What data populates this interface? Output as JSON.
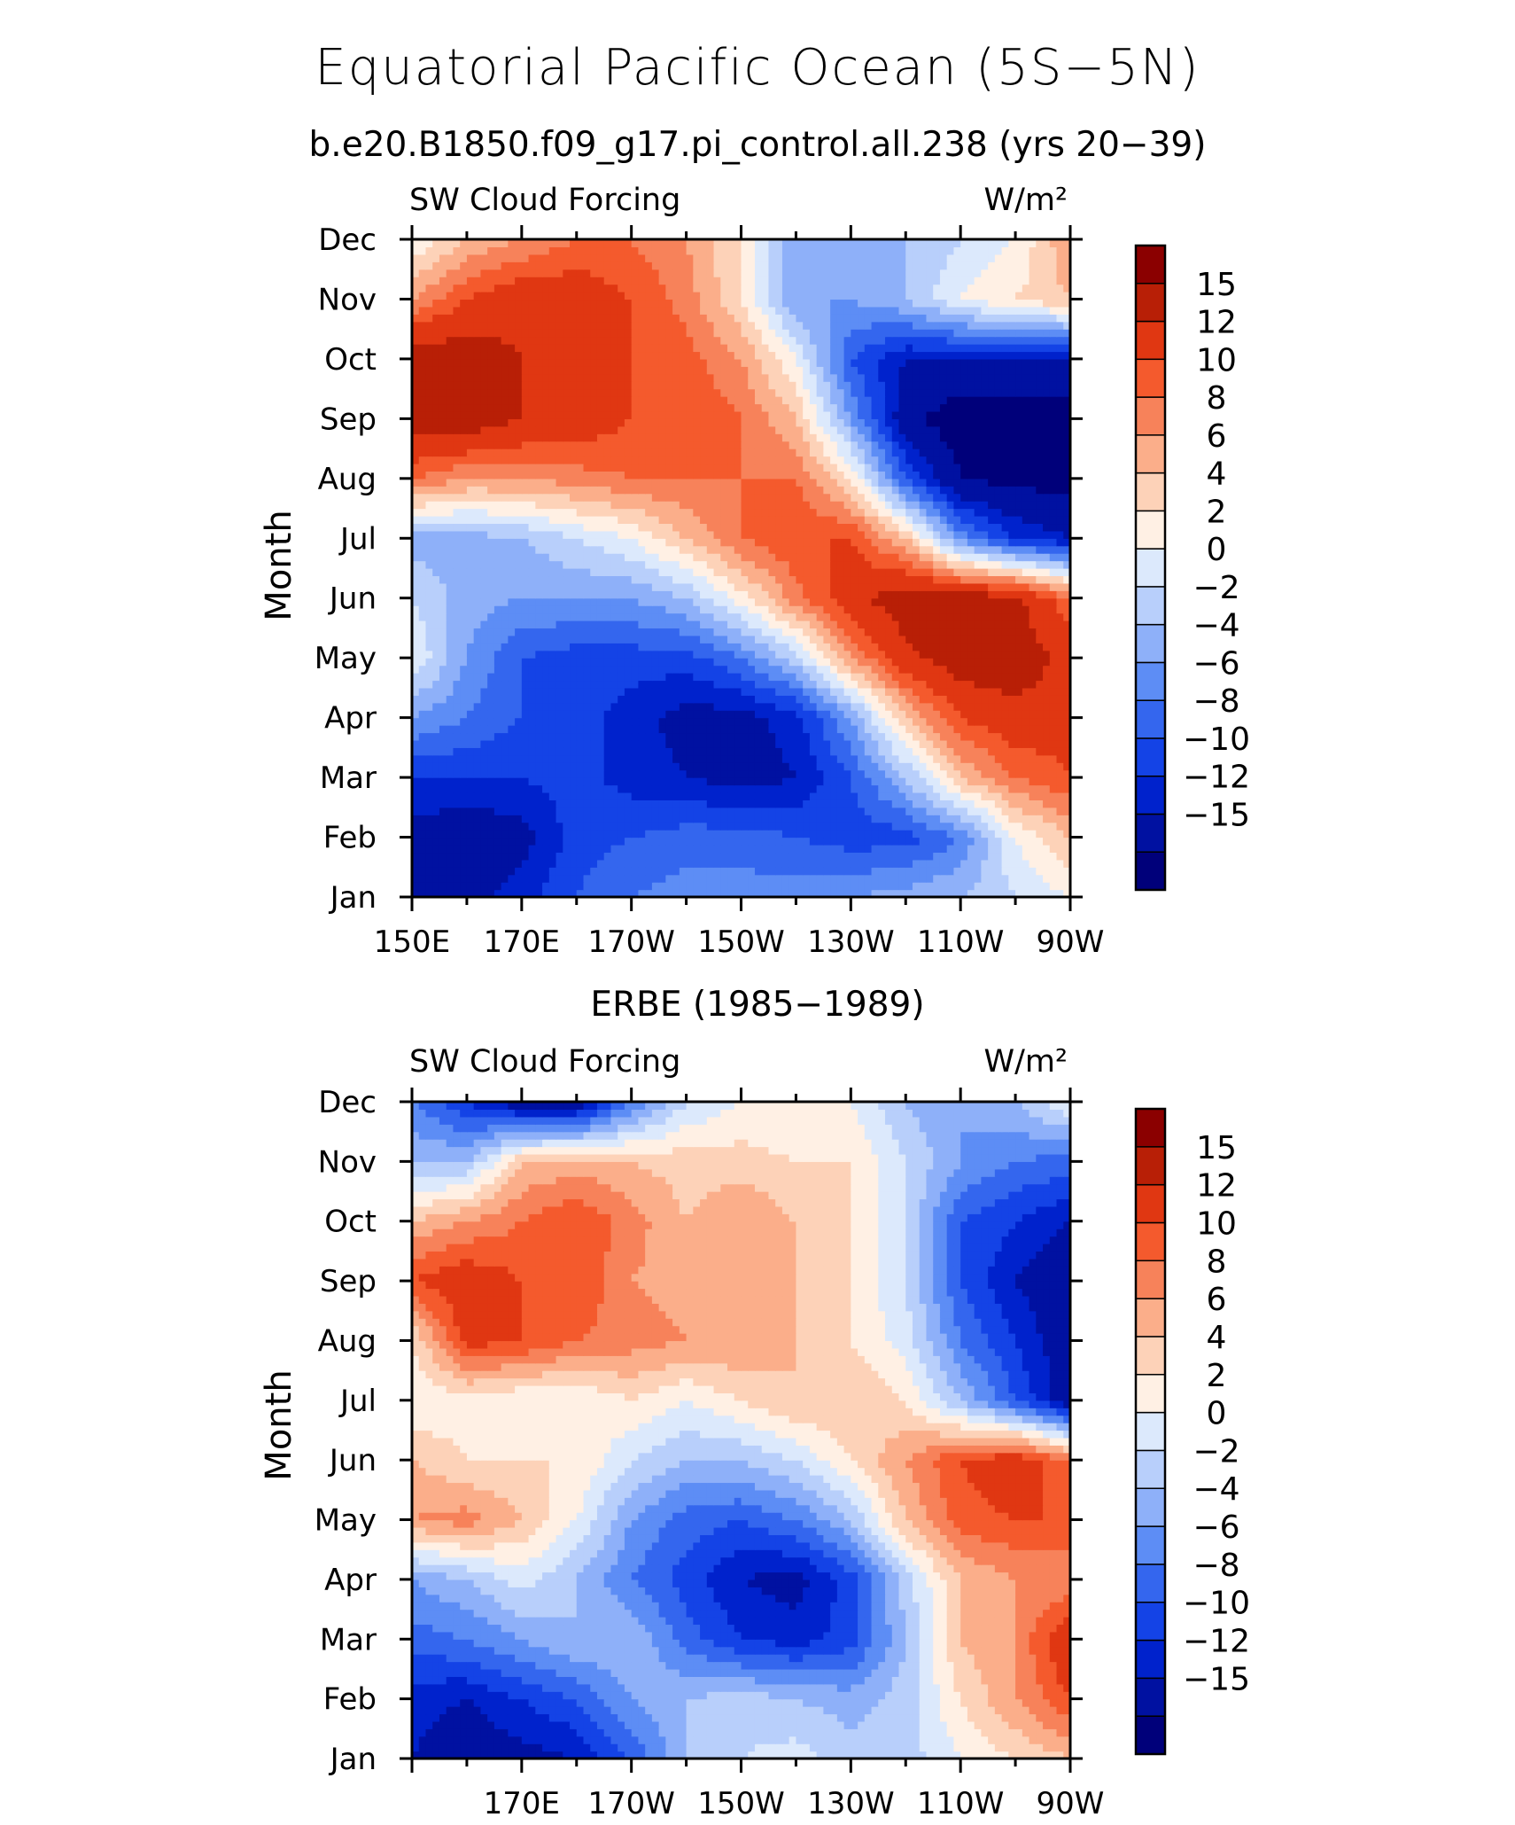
{
  "title": "Equatorial Pacific Ocean (5S−5N)",
  "colors": [
    "#00007a",
    "#0011a1",
    "#0022cc",
    "#1443e6",
    "#3466ee",
    "#5d8df5",
    "#8eb0f9",
    "#b8cffb",
    "#dce9fc",
    "#fff0e4",
    "#fdd2b8",
    "#fbae8a",
    "#f7825a",
    "#f45a2d",
    "#e03712",
    "#b81f06",
    "#8b0000"
  ],
  "colorbar_labels": [
    "15",
    "12",
    "10",
    "8",
    "6",
    "4",
    "2",
    "0",
    "−2",
    "−4",
    "−6",
    "−8",
    "−10",
    "−12",
    "−15"
  ],
  "panels": [
    {
      "subtitle": "b.e20.B1850.f09_g17.pi_control.all.238 (yrs 20−39)",
      "left_label": "SW Cloud Forcing",
      "right_label": "W/m²",
      "ylabel": "Month",
      "y_ticks": [
        "Jan",
        "Feb",
        "Mar",
        "Apr",
        "May",
        "Jun",
        "Jul",
        "Aug",
        "Sep",
        "Oct",
        "Nov",
        "Dec"
      ],
      "x_ticks": [
        "150E",
        "170E",
        "170W",
        "150W",
        "130W",
        "110W",
        "90W"
      ]
    },
    {
      "subtitle": "ERBE (1985−1989)",
      "left_label": "SW Cloud Forcing",
      "right_label": "W/m²",
      "ylabel": "Month",
      "y_ticks": [
        "Jan",
        "Feb",
        "Mar",
        "Apr",
        "May",
        "Jun",
        "Jul",
        "Aug",
        "Sep",
        "Oct",
        "Nov",
        "Dec"
      ],
      "x_ticks": [
        "170E",
        "170W",
        "150W",
        "130W",
        "110W",
        "90W"
      ]
    }
  ],
  "chart_data": [
    {
      "type": "heatmap",
      "title": "b.e20.B1850.f09_g17.pi_control.all.238 (yrs 20−39)",
      "xlabel": "",
      "ylabel": "Month",
      "units": "W/m²",
      "x": [
        150,
        160,
        170,
        180,
        190,
        200,
        210,
        220,
        230,
        240,
        250,
        260,
        270
      ],
      "y": [
        "Jan",
        "Feb",
        "Mar",
        "Apr",
        "May",
        "Jun",
        "Jul",
        "Aug",
        "Sep",
        "Oct",
        "Nov",
        "Dec"
      ],
      "z": [
        [
          -13,
          -13,
          -11,
          -8,
          -6,
          -5,
          -5,
          -5,
          -4,
          -3,
          -2,
          0,
          2
        ],
        [
          -13,
          -14,
          -13,
          -9,
          -8,
          -7,
          -7,
          -8,
          -9,
          -9,
          -6,
          2,
          6
        ],
        [
          -10,
          -10,
          -10,
          -9,
          -11,
          -12,
          -13,
          -12,
          -8,
          -2,
          6,
          10,
          12
        ],
        [
          -4,
          -6,
          -8,
          -9,
          -11,
          -13,
          -13,
          -11,
          -4,
          6,
          12,
          14,
          13
        ],
        [
          2,
          -4,
          -8,
          -9,
          -9,
          -9,
          -6,
          -1,
          8,
          14,
          17,
          17,
          14
        ],
        [
          0,
          -3,
          -4,
          -4,
          -4,
          -2,
          3,
          9,
          14,
          17,
          17,
          16,
          10
        ],
        [
          -3,
          -3,
          -2,
          0,
          2,
          6,
          10,
          12,
          12,
          6,
          -5,
          -10,
          -12
        ],
        [
          10,
          8,
          8,
          9,
          10,
          10,
          10,
          10,
          4,
          -8,
          -15,
          -16,
          -16
        ],
        [
          17,
          17,
          15,
          14,
          12,
          12,
          10,
          6,
          -4,
          -14,
          -17,
          -17,
          -17
        ],
        [
          17,
          17,
          15,
          15,
          12,
          11,
          8,
          2,
          -8,
          -12,
          -12,
          -12,
          -12
        ],
        [
          8,
          12,
          14,
          14,
          12,
          9,
          4,
          -4,
          -4,
          -2,
          2,
          4,
          6
        ],
        [
          2,
          6,
          8,
          10,
          10,
          8,
          4,
          -4,
          -4,
          -2,
          0,
          2,
          8
        ]
      ],
      "levels": [
        -15,
        -12,
        -10,
        -8,
        -6,
        -4,
        -2,
        0,
        2,
        4,
        6,
        8,
        10,
        12,
        15
      ]
    },
    {
      "type": "heatmap",
      "title": "ERBE (1985−1989)",
      "xlabel": "",
      "ylabel": "Month",
      "units": "W/m²",
      "x": [
        150,
        160,
        170,
        180,
        190,
        200,
        210,
        220,
        230,
        240,
        250,
        260,
        270
      ],
      "y": [
        "Jan",
        "Feb",
        "Mar",
        "Apr",
        "May",
        "Jun",
        "Jul",
        "Aug",
        "Sep",
        "Oct",
        "Nov",
        "Dec"
      ],
      "z": [
        [
          -12,
          -14,
          -13,
          -12,
          -8,
          -2,
          0,
          1,
          -1,
          -1,
          2,
          4,
          6
        ],
        [
          -11,
          -12,
          -10,
          -8,
          -4,
          -2,
          -1,
          -2,
          -3,
          -1,
          4,
          8,
          12
        ],
        [
          -7,
          -6,
          -4,
          -2,
          -2,
          -7,
          -10,
          -11,
          -9,
          -2,
          6,
          8,
          15
        ],
        [
          -4,
          -2,
          1,
          -2,
          -6,
          -9,
          -12,
          -13,
          -9,
          -1,
          6,
          8,
          8
        ],
        [
          8,
          9,
          6,
          2,
          -4,
          -7,
          -8,
          -6,
          -2,
          6,
          11,
          12,
          12
        ],
        [
          6,
          4,
          4,
          4,
          0,
          -2,
          -2,
          0,
          4,
          8,
          12,
          14,
          10
        ],
        [
          2,
          3,
          2,
          2,
          4,
          2,
          4,
          6,
          6,
          4,
          -2,
          -8,
          -14
        ],
        [
          4,
          13,
          12,
          10,
          9,
          8,
          8,
          6,
          4,
          1,
          -6,
          -10,
          -14
        ],
        [
          12,
          14,
          12,
          12,
          8,
          7,
          8,
          6,
          4,
          0,
          -8,
          -12,
          -15
        ],
        [
          6,
          8,
          10,
          12,
          9,
          6,
          8,
          6,
          4,
          0,
          -8,
          -10,
          -12
        ],
        [
          -2,
          -2,
          6,
          7,
          6,
          5,
          5,
          4,
          4,
          0,
          -4,
          -6,
          -7
        ],
        [
          -6,
          -10,
          -14,
          -14,
          -6,
          0,
          2,
          2,
          2,
          -2,
          -4,
          -2,
          2
        ]
      ],
      "levels": [
        -15,
        -12,
        -10,
        -8,
        -6,
        -4,
        -2,
        0,
        2,
        4,
        6,
        8,
        10,
        12,
        15
      ]
    }
  ]
}
